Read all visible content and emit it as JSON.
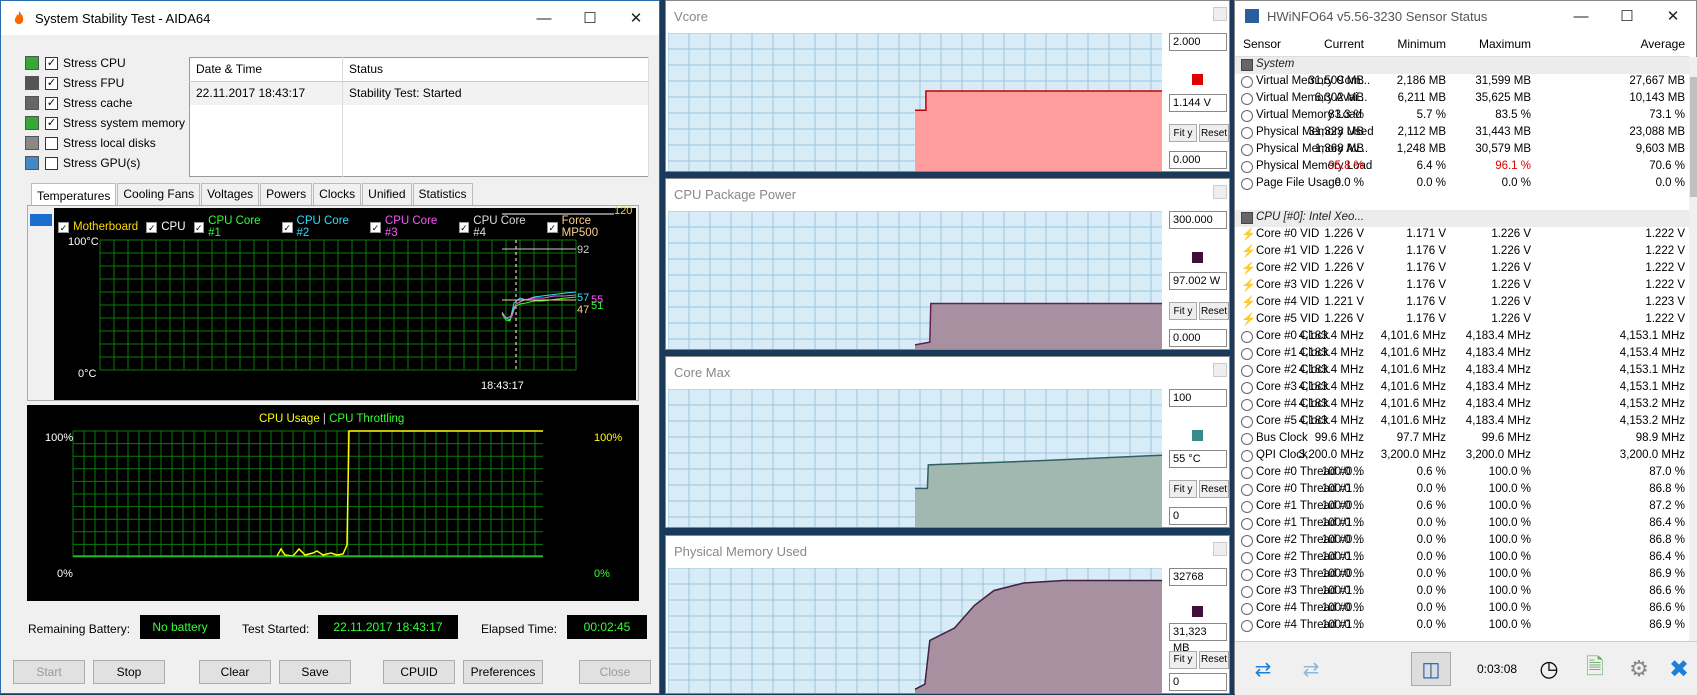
{
  "aida": {
    "title": "System Stability Test - AIDA64",
    "stress": [
      {
        "label": "Stress CPU",
        "checked": true
      },
      {
        "label": "Stress FPU",
        "checked": true
      },
      {
        "label": "Stress cache",
        "checked": true
      },
      {
        "label": "Stress system memory",
        "checked": true
      },
      {
        "label": "Stress local disks",
        "checked": false
      },
      {
        "label": "Stress GPU(s)",
        "checked": false
      }
    ],
    "log_headers": [
      "Date & Time",
      "Status"
    ],
    "log_rows": [
      [
        "22.11.2017 18:43:17",
        "Stability Test: Started"
      ]
    ],
    "tabs": [
      "Temperatures",
      "Cooling Fans",
      "Voltages",
      "Powers",
      "Clocks",
      "Unified",
      "Statistics"
    ],
    "legend": [
      {
        "label": "Motherboard",
        "color": "#ffd700"
      },
      {
        "label": "CPU",
        "color": "#ffffff"
      },
      {
        "label": "CPU Core #1",
        "color": "#33ff33"
      },
      {
        "label": "CPU Core #2",
        "color": "#33ddff"
      },
      {
        "label": "CPU Core #3",
        "color": "#ff55ff"
      },
      {
        "label": "CPU Core #4",
        "color": "#dddddd"
      },
      {
        "label": "Force MP500",
        "color": "#ffd28a"
      }
    ],
    "temp_top": "100°C",
    "temp_bottom": "0°C",
    "temp_time": "18:43:17",
    "temp_120": "120",
    "temp_vals": [
      "92",
      "57",
      "55",
      "51",
      "47"
    ],
    "usage_title_a": "CPU Usage",
    "usage_sep": "|",
    "usage_title_b": "CPU Throttling",
    "usage_100": "100%",
    "usage_0": "0%",
    "battery_label": "Remaining Battery:",
    "battery_value": "No battery",
    "started_label": "Test Started:",
    "started_value": "22.11.2017 18:43:17",
    "elapsed_label": "Elapsed Time:",
    "elapsed_value": "00:02:45",
    "buttons": {
      "start": "Start",
      "stop": "Stop",
      "clear": "Clear",
      "save": "Save",
      "cpuid": "CPUID",
      "prefs": "Preferences",
      "close": "Close"
    }
  },
  "graphs": [
    {
      "title": "Vcore",
      "max": "2.000",
      "current": "1.144 V",
      "min": "0.000",
      "color": "#e00000"
    },
    {
      "title": "CPU Package Power",
      "max": "300.000",
      "current": "97.002 W",
      "min": "0.000",
      "color": "#40103a"
    },
    {
      "title": "Core Max",
      "max": "100",
      "current": "55 °C",
      "min": "0",
      "color": "#3a8a8a"
    },
    {
      "title": "Physical Memory Used",
      "max": "32768",
      "current": "31,323 MB",
      "min": "0",
      "color": "#40103a"
    }
  ],
  "graph_buttons": {
    "fit": "Fit y",
    "reset": "Reset"
  },
  "hw": {
    "title": "HWiNFO64 v5.56-3230 Sensor Status",
    "cols": [
      "Sensor",
      "Current",
      "Minimum",
      "Maximum",
      "Average"
    ],
    "rows": [
      {
        "g": true,
        "n": "System"
      },
      {
        "n": "Virtual Memory Com...",
        "c": "31,509 MB",
        "mi": "2,186 MB",
        "ma": "31,599 MB",
        "av": "27,667 MB"
      },
      {
        "n": "Virtual Memory Avai...",
        "c": "6,302 MB",
        "mi": "6,211 MB",
        "ma": "35,625 MB",
        "av": "10,143 MB"
      },
      {
        "n": "Virtual Memory Load",
        "c": "83.3 %",
        "mi": "5.7 %",
        "ma": "83.5 %",
        "av": "73.1 %"
      },
      {
        "n": "Physical Memory Used",
        "c": "31,323 MB",
        "mi": "2,112 MB",
        "ma": "31,443 MB",
        "av": "23,088 MB"
      },
      {
        "n": "Physical Memory Av...",
        "c": "1,368 MB",
        "mi": "1,248 MB",
        "ma": "30,579 MB",
        "av": "9,603 MB"
      },
      {
        "n": "Physical Memory Load",
        "c": "95.8 %",
        "mi": "6.4 %",
        "ma": "96.1 %",
        "av": "70.6 %",
        "red": true
      },
      {
        "n": "Page File Usage",
        "c": "0.0 %",
        "mi": "0.0 %",
        "ma": "0.0 %",
        "av": "0.0 %"
      },
      {
        "blank": true
      },
      {
        "g": true,
        "n": "CPU [#0]: Intel Xeo..."
      },
      {
        "v": true,
        "n": "Core #0 VID",
        "c": "1.226 V",
        "mi": "1.171 V",
        "ma": "1.226 V",
        "av": "1.222 V"
      },
      {
        "v": true,
        "n": "Core #1 VID",
        "c": "1.226 V",
        "mi": "1.176 V",
        "ma": "1.226 V",
        "av": "1.222 V"
      },
      {
        "v": true,
        "n": "Core #2 VID",
        "c": "1.226 V",
        "mi": "1.176 V",
        "ma": "1.226 V",
        "av": "1.222 V"
      },
      {
        "v": true,
        "n": "Core #3 VID",
        "c": "1.226 V",
        "mi": "1.176 V",
        "ma": "1.226 V",
        "av": "1.222 V"
      },
      {
        "v": true,
        "n": "Core #4 VID",
        "c": "1.221 V",
        "mi": "1.176 V",
        "ma": "1.226 V",
        "av": "1.223 V"
      },
      {
        "v": true,
        "n": "Core #5 VID",
        "c": "1.226 V",
        "mi": "1.176 V",
        "ma": "1.226 V",
        "av": "1.222 V"
      },
      {
        "n": "Core #0 Clock",
        "c": "4,183.4 MHz",
        "mi": "4,101.6 MHz",
        "ma": "4,183.4 MHz",
        "av": "4,153.1 MHz"
      },
      {
        "n": "Core #1 Clock",
        "c": "4,183.4 MHz",
        "mi": "4,101.6 MHz",
        "ma": "4,183.4 MHz",
        "av": "4,153.4 MHz"
      },
      {
        "n": "Core #2 Clock",
        "c": "4,183.4 MHz",
        "mi": "4,101.6 MHz",
        "ma": "4,183.4 MHz",
        "av": "4,153.1 MHz"
      },
      {
        "n": "Core #3 Clock",
        "c": "4,183.4 MHz",
        "mi": "4,101.6 MHz",
        "ma": "4,183.4 MHz",
        "av": "4,153.1 MHz"
      },
      {
        "n": "Core #4 Clock",
        "c": "4,183.4 MHz",
        "mi": "4,101.6 MHz",
        "ma": "4,183.4 MHz",
        "av": "4,153.2 MHz"
      },
      {
        "n": "Core #5 Clock",
        "c": "4,183.4 MHz",
        "mi": "4,101.6 MHz",
        "ma": "4,183.4 MHz",
        "av": "4,153.2 MHz"
      },
      {
        "n": "Bus Clock",
        "c": "99.6 MHz",
        "mi": "97.7 MHz",
        "ma": "99.6 MHz",
        "av": "98.9 MHz"
      },
      {
        "n": "QPI Clock",
        "c": "3,200.0 MHz",
        "mi": "3,200.0 MHz",
        "ma": "3,200.0 MHz",
        "av": "3,200.0 MHz"
      },
      {
        "n": "Core #0 Thread #0...",
        "c": "100.0 %",
        "mi": "0.6 %",
        "ma": "100.0 %",
        "av": "87.0 %"
      },
      {
        "n": "Core #0 Thread #1...",
        "c": "100.0 %",
        "mi": "0.0 %",
        "ma": "100.0 %",
        "av": "86.8 %"
      },
      {
        "n": "Core #1 Thread #0...",
        "c": "100.0 %",
        "mi": "0.6 %",
        "ma": "100.0 %",
        "av": "87.2 %"
      },
      {
        "n": "Core #1 Thread #1...",
        "c": "100.0 %",
        "mi": "0.0 %",
        "ma": "100.0 %",
        "av": "86.4 %"
      },
      {
        "n": "Core #2 Thread #0...",
        "c": "100.0 %",
        "mi": "0.0 %",
        "ma": "100.0 %",
        "av": "86.8 %"
      },
      {
        "n": "Core #2 Thread #1...",
        "c": "100.0 %",
        "mi": "0.0 %",
        "ma": "100.0 %",
        "av": "86.4 %"
      },
      {
        "n": "Core #3 Thread #0...",
        "c": "100.0 %",
        "mi": "0.0 %",
        "ma": "100.0 %",
        "av": "86.9 %"
      },
      {
        "n": "Core #3 Thread #1...",
        "c": "100.0 %",
        "mi": "0.0 %",
        "ma": "100.0 %",
        "av": "86.6 %"
      },
      {
        "n": "Core #4 Thread #0...",
        "c": "100.0 %",
        "mi": "0.0 %",
        "ma": "100.0 %",
        "av": "86.6 %"
      },
      {
        "n": "Core #4 Thread #1...",
        "c": "100.0 %",
        "mi": "0.0 %",
        "ma": "100.0 %",
        "av": "86.9 %"
      }
    ],
    "timer": "0:03:08"
  }
}
